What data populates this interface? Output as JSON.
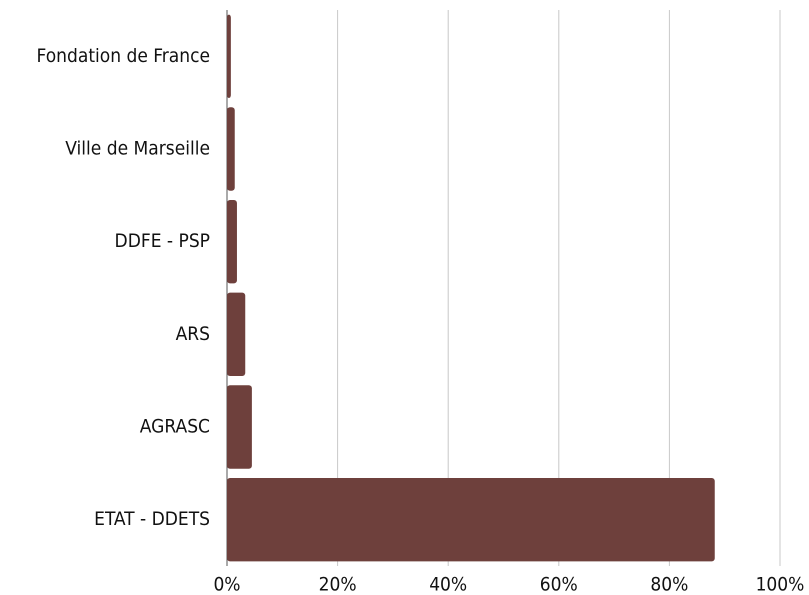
{
  "chart_data": {
    "type": "hbar",
    "categories": [
      "Fondation de France",
      "Ville de Marseille",
      "DDFE - PSP",
      "ARS",
      "AGRASC",
      "ETAT - DDETS"
    ],
    "values": [
      0.7,
      1.4,
      1.8,
      3.3,
      4.5,
      88.2
    ],
    "color": "#6e403c",
    "xlim": [
      0,
      100
    ],
    "xticks": [
      {
        "value": 0,
        "label": "0%"
      },
      {
        "value": 20,
        "label": "20%"
      },
      {
        "value": 40,
        "label": "40%"
      },
      {
        "value": 60,
        "label": "60%"
      },
      {
        "value": 80,
        "label": "80%"
      },
      {
        "value": 100,
        "label": "100%"
      }
    ],
    "grid": true
  }
}
